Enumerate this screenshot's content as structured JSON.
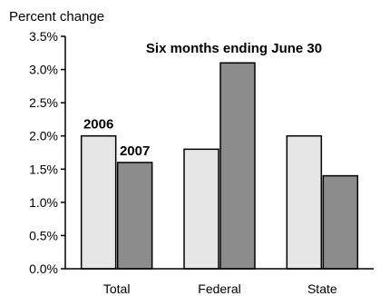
{
  "chart_data": {
    "type": "bar",
    "ylabel": "Percent change",
    "annotation": "Six months ending June 30",
    "categories": [
      "Total",
      "Federal",
      "State"
    ],
    "series": [
      {
        "name": "2006",
        "values": [
          2.0,
          1.8,
          2.0
        ],
        "color": "#e6e6e6"
      },
      {
        "name": "2007",
        "values": [
          1.6,
          3.1,
          1.4
        ],
        "color": "#8c8c8c"
      }
    ],
    "ylim": [
      0,
      3.5
    ],
    "yticks": [
      "0.0%",
      "0.5%",
      "1.0%",
      "1.5%",
      "2.0%",
      "2.5%",
      "3.0%",
      "3.5%"
    ],
    "grid": false,
    "legend": "data labels above the Total bars"
  }
}
